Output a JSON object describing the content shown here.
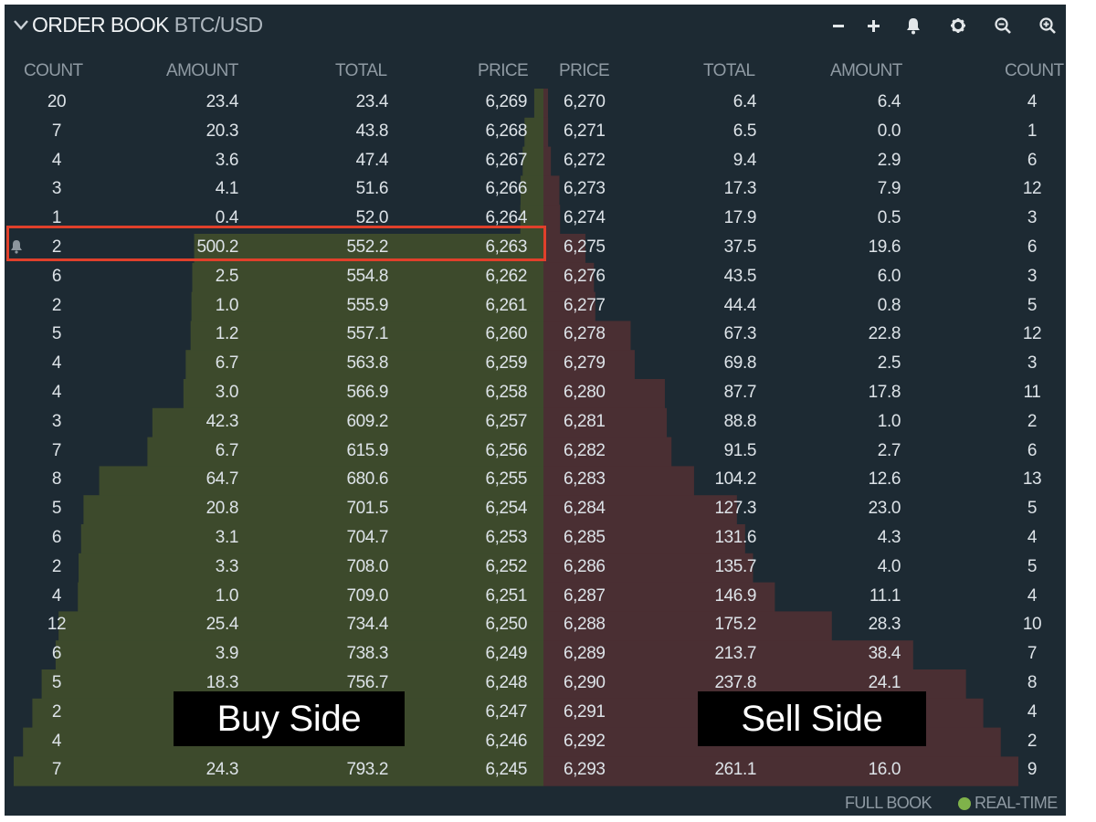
{
  "header": {
    "title": "ORDER BOOK",
    "pair": "BTC/USD",
    "tools": [
      "minus-icon",
      "plus-icon",
      "bell-icon",
      "gear-icon",
      "zoom-out-icon",
      "zoom-in-icon"
    ]
  },
  "columns": {
    "bid_count": "COUNT",
    "bid_amount": "AMOUNT",
    "bid_total": "TOTAL",
    "bid_price": "PRICE",
    "ask_price": "PRICE",
    "ask_total": "TOTAL",
    "ask_amount": "AMOUNT",
    "ask_count": "COUNT"
  },
  "bids": [
    {
      "count": "20",
      "amount": "23.4",
      "total": "23.4",
      "price": "6,269"
    },
    {
      "count": "7",
      "amount": "20.3",
      "total": "43.8",
      "price": "6,268"
    },
    {
      "count": "4",
      "amount": "3.6",
      "total": "47.4",
      "price": "6,267"
    },
    {
      "count": "3",
      "amount": "4.1",
      "total": "51.6",
      "price": "6,266"
    },
    {
      "count": "1",
      "amount": "0.4",
      "total": "52.0",
      "price": "6,264"
    },
    {
      "count": "2",
      "amount": "500.2",
      "total": "552.2",
      "price": "6,263"
    },
    {
      "count": "6",
      "amount": "2.5",
      "total": "554.8",
      "price": "6,262"
    },
    {
      "count": "2",
      "amount": "1.0",
      "total": "555.9",
      "price": "6,261"
    },
    {
      "count": "5",
      "amount": "1.2",
      "total": "557.1",
      "price": "6,260"
    },
    {
      "count": "4",
      "amount": "6.7",
      "total": "563.8",
      "price": "6,259"
    },
    {
      "count": "4",
      "amount": "3.0",
      "total": "566.9",
      "price": "6,258"
    },
    {
      "count": "3",
      "amount": "42.3",
      "total": "609.2",
      "price": "6,257"
    },
    {
      "count": "7",
      "amount": "6.7",
      "total": "615.9",
      "price": "6,256"
    },
    {
      "count": "8",
      "amount": "64.7",
      "total": "680.6",
      "price": "6,255"
    },
    {
      "count": "5",
      "amount": "20.8",
      "total": "701.5",
      "price": "6,254"
    },
    {
      "count": "6",
      "amount": "3.1",
      "total": "704.7",
      "price": "6,253"
    },
    {
      "count": "2",
      "amount": "3.3",
      "total": "708.0",
      "price": "6,252"
    },
    {
      "count": "4",
      "amount": "1.0",
      "total": "709.0",
      "price": "6,251"
    },
    {
      "count": "12",
      "amount": "25.4",
      "total": "734.4",
      "price": "6,250"
    },
    {
      "count": "6",
      "amount": "3.9",
      "total": "738.3",
      "price": "6,249"
    },
    {
      "count": "5",
      "amount": "18.3",
      "total": "756.7",
      "price": "6,248"
    },
    {
      "count": "2",
      "amount": "",
      "total": "",
      "price": "6,247"
    },
    {
      "count": "4",
      "amount": "",
      "total": "",
      "price": "6,246"
    },
    {
      "count": "7",
      "amount": "24.3",
      "total": "793.2",
      "price": "6,245"
    }
  ],
  "asks": [
    {
      "price": "6,270",
      "total": "6.4",
      "amount": "6.4",
      "count": "4"
    },
    {
      "price": "6,271",
      "total": "6.5",
      "amount": "0.0",
      "count": "1"
    },
    {
      "price": "6,272",
      "total": "9.4",
      "amount": "2.9",
      "count": "6"
    },
    {
      "price": "6,273",
      "total": "17.3",
      "amount": "7.9",
      "count": "12"
    },
    {
      "price": "6,274",
      "total": "17.9",
      "amount": "0.5",
      "count": "3"
    },
    {
      "price": "6,275",
      "total": "37.5",
      "amount": "19.6",
      "count": "6"
    },
    {
      "price": "6,276",
      "total": "43.5",
      "amount": "6.0",
      "count": "3"
    },
    {
      "price": "6,277",
      "total": "44.4",
      "amount": "0.8",
      "count": "5"
    },
    {
      "price": "6,278",
      "total": "67.3",
      "amount": "22.8",
      "count": "12"
    },
    {
      "price": "6,279",
      "total": "69.8",
      "amount": "2.5",
      "count": "3"
    },
    {
      "price": "6,280",
      "total": "87.7",
      "amount": "17.8",
      "count": "11"
    },
    {
      "price": "6,281",
      "total": "88.8",
      "amount": "1.0",
      "count": "2"
    },
    {
      "price": "6,282",
      "total": "91.5",
      "amount": "2.7",
      "count": "6"
    },
    {
      "price": "6,283",
      "total": "104.2",
      "amount": "12.6",
      "count": "13"
    },
    {
      "price": "6,284",
      "total": "127.3",
      "amount": "23.0",
      "count": "5"
    },
    {
      "price": "6,285",
      "total": "131.6",
      "amount": "4.3",
      "count": "4"
    },
    {
      "price": "6,286",
      "total": "135.7",
      "amount": "4.0",
      "count": "5"
    },
    {
      "price": "6,287",
      "total": "146.9",
      "amount": "11.1",
      "count": "4"
    },
    {
      "price": "6,288",
      "total": "175.2",
      "amount": "28.3",
      "count": "10"
    },
    {
      "price": "6,289",
      "total": "213.7",
      "amount": "38.4",
      "count": "7"
    },
    {
      "price": "6,290",
      "total": "237.8",
      "amount": "24.1",
      "count": "8"
    },
    {
      "price": "6,291",
      "total": "",
      "amount": "",
      "count": "4"
    },
    {
      "price": "6,292",
      "total": "",
      "amount": "",
      "count": "2"
    },
    {
      "price": "6,293",
      "total": "261.1",
      "amount": "16.0",
      "count": "9"
    }
  ],
  "overlay": {
    "buy_label": "Buy Side",
    "sell_label": "Sell Side"
  },
  "footer": {
    "full_book": "FULL BOOK",
    "realtime": "REAL-TIME"
  },
  "colors": {
    "panel_bg": "#1d2a33",
    "bid_depth": "#3d4a2c",
    "ask_depth": "#4a2f33",
    "highlight": "#e0402b",
    "realtime_dot": "#7fb24a"
  },
  "highlighted_row": 5
}
